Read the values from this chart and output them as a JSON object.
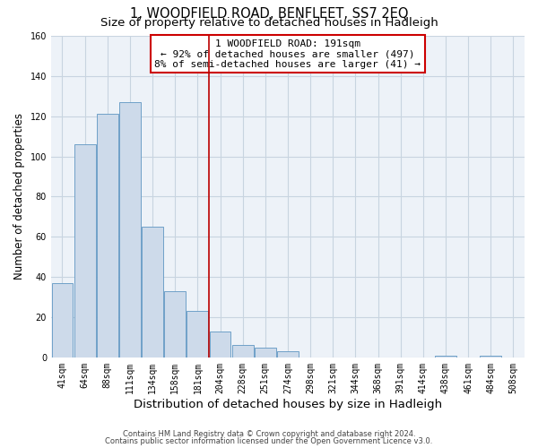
{
  "title": "1, WOODFIELD ROAD, BENFLEET, SS7 2EQ",
  "subtitle": "Size of property relative to detached houses in Hadleigh",
  "xlabel": "Distribution of detached houses by size in Hadleigh",
  "ylabel": "Number of detached properties",
  "footnote1": "Contains HM Land Registry data © Crown copyright and database right 2024.",
  "footnote2": "Contains public sector information licensed under the Open Government Licence v3.0.",
  "bar_labels": [
    "41sqm",
    "64sqm",
    "88sqm",
    "111sqm",
    "134sqm",
    "158sqm",
    "181sqm",
    "204sqm",
    "228sqm",
    "251sqm",
    "274sqm",
    "298sqm",
    "321sqm",
    "344sqm",
    "368sqm",
    "391sqm",
    "414sqm",
    "438sqm",
    "461sqm",
    "484sqm",
    "508sqm"
  ],
  "bar_values": [
    37,
    106,
    121,
    127,
    65,
    33,
    23,
    13,
    6,
    5,
    3,
    0,
    0,
    0,
    0,
    0,
    0,
    1,
    0,
    1,
    0
  ],
  "bar_color": "#cddaea",
  "bar_edgecolor": "#6fa0c8",
  "bar_linewidth": 0.7,
  "vline_x": 6.5,
  "vline_color": "#bb0000",
  "vline_linewidth": 1.2,
  "ylim": [
    0,
    160
  ],
  "yticks": [
    0,
    20,
    40,
    60,
    80,
    100,
    120,
    140,
    160
  ],
  "annotation_title": "1 WOODFIELD ROAD: 191sqm",
  "annotation_line1": "← 92% of detached houses are smaller (497)",
  "annotation_line2": "8% of semi-detached houses are larger (41) →",
  "annotation_box_edgecolor": "#cc0000",
  "grid_color": "#c8d4e0",
  "background_color": "#edf2f8",
  "title_fontsize": 10.5,
  "subtitle_fontsize": 9.5,
  "xlabel_fontsize": 9.5,
  "ylabel_fontsize": 8.5,
  "tick_fontsize": 7,
  "annotation_fontsize": 8,
  "footnote_fontsize": 6
}
